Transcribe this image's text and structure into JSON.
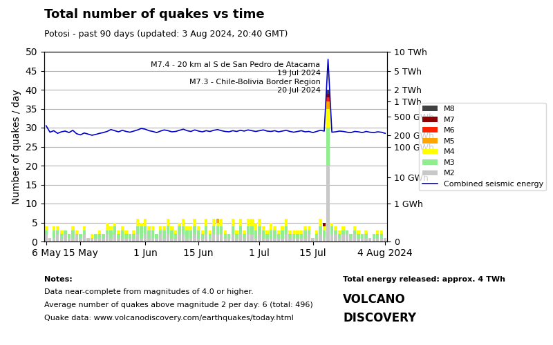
{
  "chart_data": {
    "type": "bar",
    "stacked": true,
    "title": "Total number of quakes vs time",
    "subtitle": "Potosi - past 90 days (updated: 3 Aug 2024, 20:40 GMT)",
    "y_label": "Number of quakes / day",
    "annotation": "M7.4 - 20 km al S de San Pedro de Atacama\n19 Jul 2024\nM7.3 - Chile-Bolivia Border Region\n20 Jul 2024",
    "notes": [
      "Notes:",
      "Data near-complete from magnitudes of 4.0 or higher.",
      "Average number of quakes above magnitude 2 per day: 6 (total: 496)",
      "Quake data: www.volcanodiscovery.com/earthquakes/today.html"
    ],
    "footer": [
      "Total energy released: approx. 4 TWh",
      "VOLCANO",
      "DISCOVERY"
    ],
    "grid": "y",
    "legend": "right",
    "categories": [
      "6 May",
      null,
      null,
      null,
      null,
      null,
      null,
      null,
      null,
      "15 May",
      null,
      null,
      null,
      null,
      null,
      null,
      null,
      null,
      null,
      null,
      null,
      null,
      null,
      null,
      null,
      null,
      "1 Jun",
      null,
      null,
      null,
      null,
      null,
      null,
      null,
      null,
      null,
      null,
      null,
      null,
      null,
      "15 Jun",
      null,
      null,
      null,
      null,
      null,
      null,
      null,
      null,
      null,
      null,
      null,
      null,
      null,
      null,
      null,
      "1 Jul",
      null,
      null,
      null,
      null,
      null,
      null,
      null,
      null,
      null,
      null,
      null,
      null,
      null,
      "15 Jul",
      null,
      null,
      null,
      null,
      null,
      null,
      null,
      null,
      null,
      null,
      null,
      null,
      null,
      null,
      null,
      null,
      null,
      null,
      "4 Aug 2024"
    ],
    "ylim": [
      0,
      50
    ],
    "yticks": [
      0,
      5,
      10,
      15,
      20,
      25,
      30,
      35,
      40,
      45,
      50
    ],
    "y2lim": [
      0,
      50
    ],
    "y2ticks": [
      {
        "value": 50,
        "label": "10 TWh"
      },
      {
        "value": 45,
        "label": "5 TWh"
      },
      {
        "value": 40,
        "label": "2 TWh"
      },
      {
        "value": 37,
        "label": "1 TWh"
      },
      {
        "value": 33,
        "label": "500 GWh"
      },
      {
        "value": 28,
        "label": "200 GWh"
      },
      {
        "value": 25,
        "label": "100 GWh"
      },
      {
        "value": 17,
        "label": "10 GWh"
      },
      {
        "value": 10,
        "label": "1 GWh"
      },
      0
    ],
    "series": [
      {
        "name": "M2",
        "type": "bar",
        "color": "#c8c8c8",
        "values": [
          2,
          1,
          1,
          2,
          1,
          2,
          1,
          1,
          2,
          1,
          2,
          1,
          1,
          1,
          1,
          1,
          2,
          1,
          2,
          1,
          1,
          1,
          1,
          1,
          2,
          1,
          2,
          1,
          1,
          1,
          2,
          1,
          2,
          1,
          1,
          2,
          2,
          1,
          1,
          2,
          1,
          1,
          2,
          1,
          2,
          2,
          2,
          1,
          1,
          2,
          1,
          2,
          1,
          2,
          2,
          1,
          2,
          1,
          1,
          1,
          1,
          1,
          1,
          2,
          1,
          1,
          1,
          1,
          1,
          2,
          1,
          1,
          2,
          1,
          20,
          2,
          2,
          1,
          2,
          2,
          1,
          2,
          1,
          1,
          1,
          1,
          1,
          1,
          1,
          1
        ]
      },
      {
        "name": "M3",
        "type": "bar",
        "color": "#90ee90",
        "values": [
          1,
          0,
          2,
          1,
          1,
          1,
          1,
          2,
          0,
          1,
          1,
          0,
          0,
          1,
          1,
          1,
          1,
          2,
          2,
          1,
          2,
          1,
          1,
          1,
          2,
          3,
          2,
          2,
          2,
          1,
          1,
          2,
          2,
          2,
          1,
          2,
          2,
          2,
          2,
          2,
          2,
          1,
          2,
          1,
          2,
          2,
          2,
          1,
          1,
          2,
          1,
          2,
          1,
          2,
          2,
          2,
          2,
          2,
          1,
          2,
          2,
          1,
          2,
          2,
          1,
          1,
          1,
          1,
          2,
          1,
          0,
          1,
          2,
          2,
          10,
          2,
          1,
          1,
          1,
          1,
          1,
          1,
          1,
          1,
          1,
          0,
          1,
          1,
          1,
          0
        ]
      },
      {
        "name": "M4",
        "type": "bar",
        "color": "#ffff00",
        "values": [
          1,
          0,
          1,
          1,
          1,
          0,
          0,
          1,
          1,
          0,
          1,
          0,
          1,
          0,
          1,
          0,
          2,
          1,
          1,
          1,
          1,
          1,
          0,
          1,
          2,
          1,
          2,
          1,
          1,
          0,
          1,
          1,
          2,
          1,
          1,
          1,
          2,
          1,
          1,
          2,
          1,
          1,
          2,
          1,
          2,
          1,
          2,
          1,
          0,
          2,
          1,
          2,
          1,
          2,
          2,
          2,
          2,
          1,
          1,
          2,
          1,
          1,
          1,
          2,
          1,
          1,
          1,
          1,
          1,
          1,
          0,
          1,
          2,
          1,
          5,
          1,
          1,
          1,
          1,
          0,
          0,
          1,
          1,
          0,
          1,
          0,
          0,
          1,
          1,
          0
        ]
      },
      {
        "name": "M5",
        "type": "bar",
        "color": "#ffa500",
        "values": [
          0,
          0,
          0,
          0,
          0,
          0,
          0,
          0,
          0,
          0,
          0,
          0,
          0,
          0,
          0,
          0,
          0,
          0,
          0,
          0,
          0,
          0,
          0,
          0,
          0,
          0,
          0,
          0,
          0,
          0,
          0,
          0,
          0,
          0,
          0,
          0,
          0,
          0,
          0,
          0,
          0,
          0,
          0,
          0,
          0,
          1,
          0,
          0,
          0,
          0,
          0,
          0,
          0,
          0,
          0,
          0,
          0,
          0,
          0,
          0,
          0,
          0,
          0,
          0,
          0,
          0,
          0,
          0,
          0,
          0,
          0,
          0,
          0,
          0,
          2,
          0,
          0,
          0,
          0,
          0,
          0,
          0,
          0,
          0,
          0,
          0,
          0,
          0,
          0,
          0
        ]
      },
      {
        "name": "M6",
        "type": "bar",
        "color": "#ff2200",
        "values": [
          0,
          0,
          0,
          0,
          0,
          0,
          0,
          0,
          0,
          0,
          0,
          0,
          0,
          0,
          0,
          0,
          0,
          0,
          0,
          0,
          0,
          0,
          0,
          0,
          0,
          0,
          0,
          0,
          0,
          0,
          0,
          0,
          0,
          0,
          0,
          0,
          0,
          0,
          0,
          0,
          0,
          0,
          0,
          0,
          0,
          0,
          0,
          0,
          0,
          0,
          0,
          0,
          0,
          0,
          0,
          0,
          0,
          0,
          0,
          0,
          0,
          0,
          0,
          0,
          0,
          0,
          0,
          0,
          0,
          0,
          0,
          0,
          0,
          0,
          1,
          0,
          0,
          0,
          0,
          0,
          0,
          0,
          0,
          0,
          0,
          0,
          0,
          0,
          0,
          0
        ]
      },
      {
        "name": "M7",
        "type": "bar",
        "color": "#8b0000",
        "values": [
          0,
          0,
          0,
          0,
          0,
          0,
          0,
          0,
          0,
          0,
          0,
          0,
          0,
          0,
          0,
          0,
          0,
          0,
          0,
          0,
          0,
          0,
          0,
          0,
          0,
          0,
          0,
          0,
          0,
          0,
          0,
          0,
          0,
          0,
          0,
          0,
          0,
          0,
          0,
          0,
          0,
          0,
          0,
          0,
          0,
          0,
          0,
          0,
          0,
          0,
          0,
          0,
          0,
          0,
          0,
          0,
          0,
          0,
          0,
          0,
          0,
          0,
          0,
          0,
          0,
          0,
          0,
          0,
          0,
          0,
          0,
          0,
          0,
          1,
          1,
          0,
          0,
          0,
          0,
          0,
          0,
          0,
          0,
          0,
          0,
          0,
          0,
          0,
          0,
          0
        ]
      },
      {
        "name": "M8",
        "type": "bar",
        "color": "#404040",
        "values": [
          0,
          0,
          0,
          0,
          0,
          0,
          0,
          0,
          0,
          0,
          0,
          0,
          0,
          0,
          0,
          0,
          0,
          0,
          0,
          0,
          0,
          0,
          0,
          0,
          0,
          0,
          0,
          0,
          0,
          0,
          0,
          0,
          0,
          0,
          0,
          0,
          0,
          0,
          0,
          0,
          0,
          0,
          0,
          0,
          0,
          0,
          0,
          0,
          0,
          0,
          0,
          0,
          0,
          0,
          0,
          0,
          0,
          0,
          0,
          0,
          0,
          0,
          0,
          0,
          0,
          0,
          0,
          0,
          0,
          0,
          0,
          0,
          0,
          0,
          1,
          0,
          0,
          0,
          0,
          0,
          0,
          0,
          0,
          0,
          0,
          0,
          0,
          0,
          0,
          0
        ]
      },
      {
        "name": "Combined seismic energy",
        "type": "line",
        "axis": "y2",
        "color": "#0000cc",
        "values": [
          30.5,
          28.8,
          29.2,
          28.5,
          28.9,
          29.1,
          28.7,
          29.3,
          28.4,
          28.1,
          28.6,
          28.3,
          28.0,
          28.2,
          28.5,
          28.7,
          29.0,
          29.5,
          29.2,
          28.9,
          29.3,
          29.0,
          28.8,
          29.1,
          29.4,
          29.8,
          29.6,
          29.2,
          29.0,
          28.7,
          29.1,
          29.4,
          29.2,
          28.9,
          29.0,
          29.3,
          29.6,
          29.2,
          29.0,
          29.4,
          29.1,
          28.9,
          29.2,
          29.0,
          29.3,
          29.5,
          29.2,
          29.0,
          28.9,
          29.2,
          29.0,
          29.3,
          29.1,
          29.4,
          29.2,
          29.0,
          29.2,
          29.4,
          29.1,
          29.0,
          29.2,
          28.9,
          29.1,
          29.3,
          29.0,
          28.8,
          29.0,
          29.2,
          28.9,
          29.0,
          28.7,
          29.0,
          29.3,
          29.1,
          48.0,
          28.8,
          28.9,
          29.1,
          29.0,
          28.8,
          28.7,
          29.0,
          28.9,
          28.7,
          29.0,
          28.8,
          28.7,
          28.9,
          28.8,
          28.5
        ]
      }
    ]
  }
}
